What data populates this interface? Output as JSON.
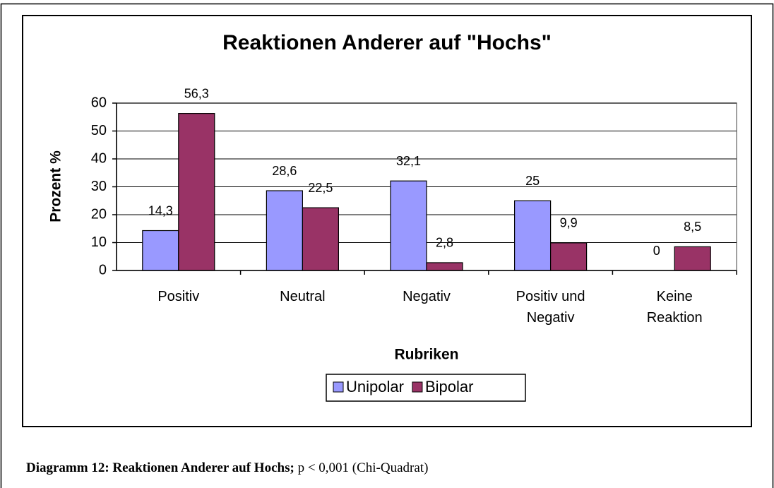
{
  "chart_data": {
    "type": "bar",
    "title": "Reaktionen Anderer auf \"Hochs\"",
    "xlabel": "Rubriken",
    "ylabel": "Prozent %",
    "categories": [
      "Positiv",
      "Neutral",
      "Negativ",
      "Positiv und Negativ",
      "Keine Reaktion"
    ],
    "series": [
      {
        "name": "Unipolar",
        "color": "#9999ff",
        "values": [
          14.3,
          28.6,
          32.1,
          25,
          0
        ],
        "value_labels": [
          "14,3",
          "28,6",
          "32,1",
          "25",
          "0"
        ]
      },
      {
        "name": "Bipolar",
        "color": "#993366",
        "values": [
          56.3,
          22.5,
          2.8,
          9.9,
          8.5
        ],
        "value_labels": [
          "56,3",
          "22,5",
          "2,8",
          "9,9",
          "8,5"
        ]
      }
    ],
    "ylim": [
      0,
      60
    ],
    "yticks": [
      0,
      10,
      20,
      30,
      40,
      50,
      60
    ],
    "grid": true,
    "legend": "bottom"
  },
  "caption": {
    "bold": "Diagramm 12: Reaktionen Anderer auf Hochs;",
    "rest": "p < 0,001 (Chi-Quadrat)"
  }
}
